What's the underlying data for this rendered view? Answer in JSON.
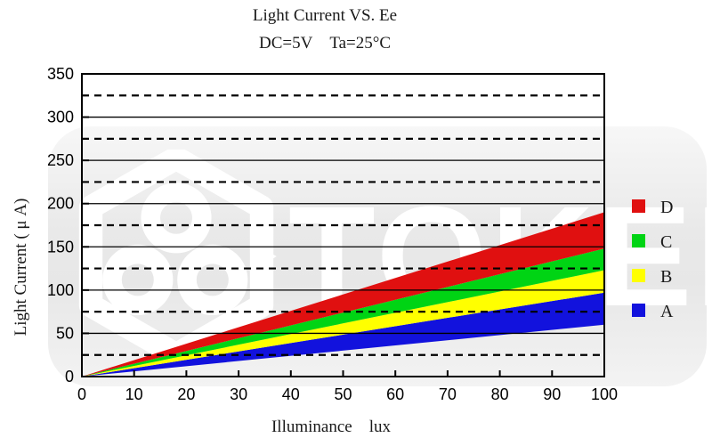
{
  "watermark": {
    "text": "TOKEN"
  },
  "chart_data": {
    "type": "area",
    "title": "Light Current VS. Ee",
    "subtitle": "DC=5V Ta=25°C",
    "xlabel": "Illuminance lux",
    "ylabel": "Light Current ( μ A)",
    "xlim": [
      0,
      100
    ],
    "ylim": [
      0,
      350
    ],
    "x_ticks": [
      0,
      10,
      20,
      30,
      40,
      50,
      60,
      70,
      80,
      90,
      100
    ],
    "y_ticks": [
      0,
      50,
      100,
      150,
      200,
      250,
      300,
      350
    ],
    "y_minor_ticks": [
      25,
      75,
      125,
      175,
      225,
      275,
      325
    ],
    "grid_solid": [
      50,
      100,
      150,
      200,
      250,
      300
    ],
    "grid_dashed": [
      25,
      75,
      125,
      175,
      225,
      275,
      325
    ],
    "legend_position": "right",
    "series": [
      {
        "name": "A",
        "color": "#1212dd",
        "x": [
          0,
          100
        ],
        "lower": [
          0,
          60
        ],
        "upper": [
          0,
          97
        ]
      },
      {
        "name": "B",
        "color": "#ffff00",
        "x": [
          0,
          100
        ],
        "lower": [
          0,
          97
        ],
        "upper": [
          0,
          123
        ]
      },
      {
        "name": "C",
        "color": "#00d414",
        "x": [
          0,
          100
        ],
        "lower": [
          0,
          123
        ],
        "upper": [
          0,
          148
        ]
      },
      {
        "name": "D",
        "color": "#e01010",
        "x": [
          0,
          100
        ],
        "lower": [
          0,
          148
        ],
        "upper": [
          0,
          190
        ]
      }
    ],
    "legend": [
      {
        "label": "D",
        "color": "#e01010"
      },
      {
        "label": "C",
        "color": "#00d414"
      },
      {
        "label": "B",
        "color": "#ffff00"
      },
      {
        "label": "A",
        "color": "#1212dd"
      }
    ]
  }
}
